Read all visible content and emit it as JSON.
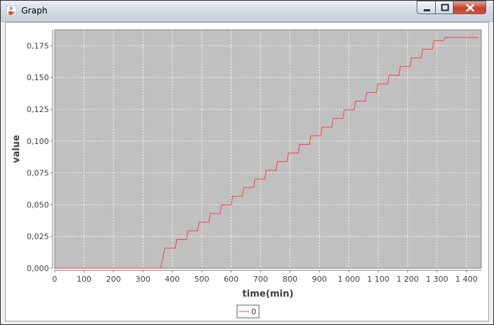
{
  "window": {
    "title": "Graph"
  },
  "chart_data": {
    "type": "line",
    "xlabel": "time(min)",
    "ylabel": "value",
    "xlim": [
      0,
      1450
    ],
    "ylim": [
      0,
      0.1875
    ],
    "x_ticks": [
      0,
      100,
      200,
      300,
      400,
      500,
      600,
      700,
      800,
      900,
      1000,
      1100,
      1200,
      1300,
      1400
    ],
    "x_tick_labels": [
      "0",
      "100",
      "200",
      "300",
      "400",
      "500",
      "600",
      "700",
      "800",
      "900",
      "1 000",
      "1 100",
      "1 200",
      "1 300",
      "1 400"
    ],
    "y_ticks": [
      0,
      0.025,
      0.05,
      0.075,
      0.1,
      0.125,
      0.15,
      0.175
    ],
    "y_tick_labels": [
      "0,000",
      "0,025",
      "0,050",
      "0,075",
      "0,100",
      "0,125",
      "0,150",
      "0,175"
    ],
    "grid": true,
    "legend": "bottom-center",
    "series": [
      {
        "name": "0",
        "color": "#ff4040",
        "points": [
          [
            0,
            0
          ],
          [
            360,
            0
          ],
          [
            375,
            0.0158
          ],
          [
            410,
            0.0158
          ],
          [
            415,
            0.0226
          ],
          [
            448,
            0.0226
          ],
          [
            453,
            0.0294
          ],
          [
            486,
            0.0294
          ],
          [
            491,
            0.0362
          ],
          [
            524,
            0.0362
          ],
          [
            529,
            0.043
          ],
          [
            562,
            0.043
          ],
          [
            567,
            0.0498
          ],
          [
            600,
            0.0498
          ],
          [
            605,
            0.0566
          ],
          [
            638,
            0.0566
          ],
          [
            643,
            0.0634
          ],
          [
            676,
            0.0634
          ],
          [
            681,
            0.0702
          ],
          [
            714,
            0.0702
          ],
          [
            719,
            0.077
          ],
          [
            752,
            0.077
          ],
          [
            757,
            0.0838
          ],
          [
            790,
            0.0838
          ],
          [
            795,
            0.0906
          ],
          [
            828,
            0.0906
          ],
          [
            833,
            0.0974
          ],
          [
            866,
            0.0974
          ],
          [
            871,
            0.1042
          ],
          [
            904,
            0.1042
          ],
          [
            909,
            0.111
          ],
          [
            942,
            0.111
          ],
          [
            947,
            0.1178
          ],
          [
            980,
            0.1178
          ],
          [
            985,
            0.1246
          ],
          [
            1018,
            0.1246
          ],
          [
            1023,
            0.1314
          ],
          [
            1056,
            0.1314
          ],
          [
            1061,
            0.1382
          ],
          [
            1094,
            0.1382
          ],
          [
            1099,
            0.145
          ],
          [
            1132,
            0.145
          ],
          [
            1137,
            0.1518
          ],
          [
            1170,
            0.1518
          ],
          [
            1175,
            0.1586
          ],
          [
            1208,
            0.1586
          ],
          [
            1213,
            0.1654
          ],
          [
            1246,
            0.1654
          ],
          [
            1251,
            0.1722
          ],
          [
            1284,
            0.1722
          ],
          [
            1289,
            0.179
          ],
          [
            1322,
            0.179
          ],
          [
            1327,
            0.1815
          ],
          [
            1440,
            0.1815
          ]
        ]
      }
    ]
  }
}
